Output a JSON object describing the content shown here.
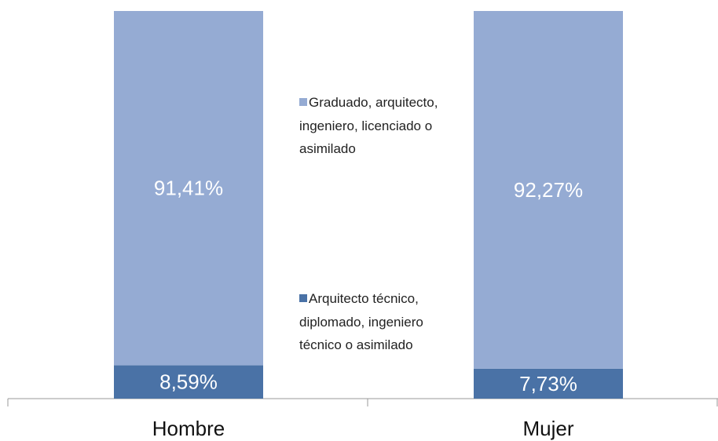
{
  "chart_data": {
    "type": "stacked_bar",
    "categories": [
      "Hombre",
      "Mujer"
    ],
    "series": [
      {
        "name": "Arquitecto técnico, diplomado, ingeniero técnico o asimilado",
        "color": "#4a72a6",
        "values": [
          8.59,
          7.73
        ],
        "value_labels": [
          "8,59%",
          "7,73%"
        ]
      },
      {
        "name": "Graduado, arquitecto, ingeniero, licenciado o asimilado",
        "color": "#95abd3",
        "values": [
          91.41,
          92.27
        ],
        "value_labels": [
          "91,41%",
          "92,27%"
        ]
      }
    ],
    "ylim": [
      0,
      100
    ]
  }
}
